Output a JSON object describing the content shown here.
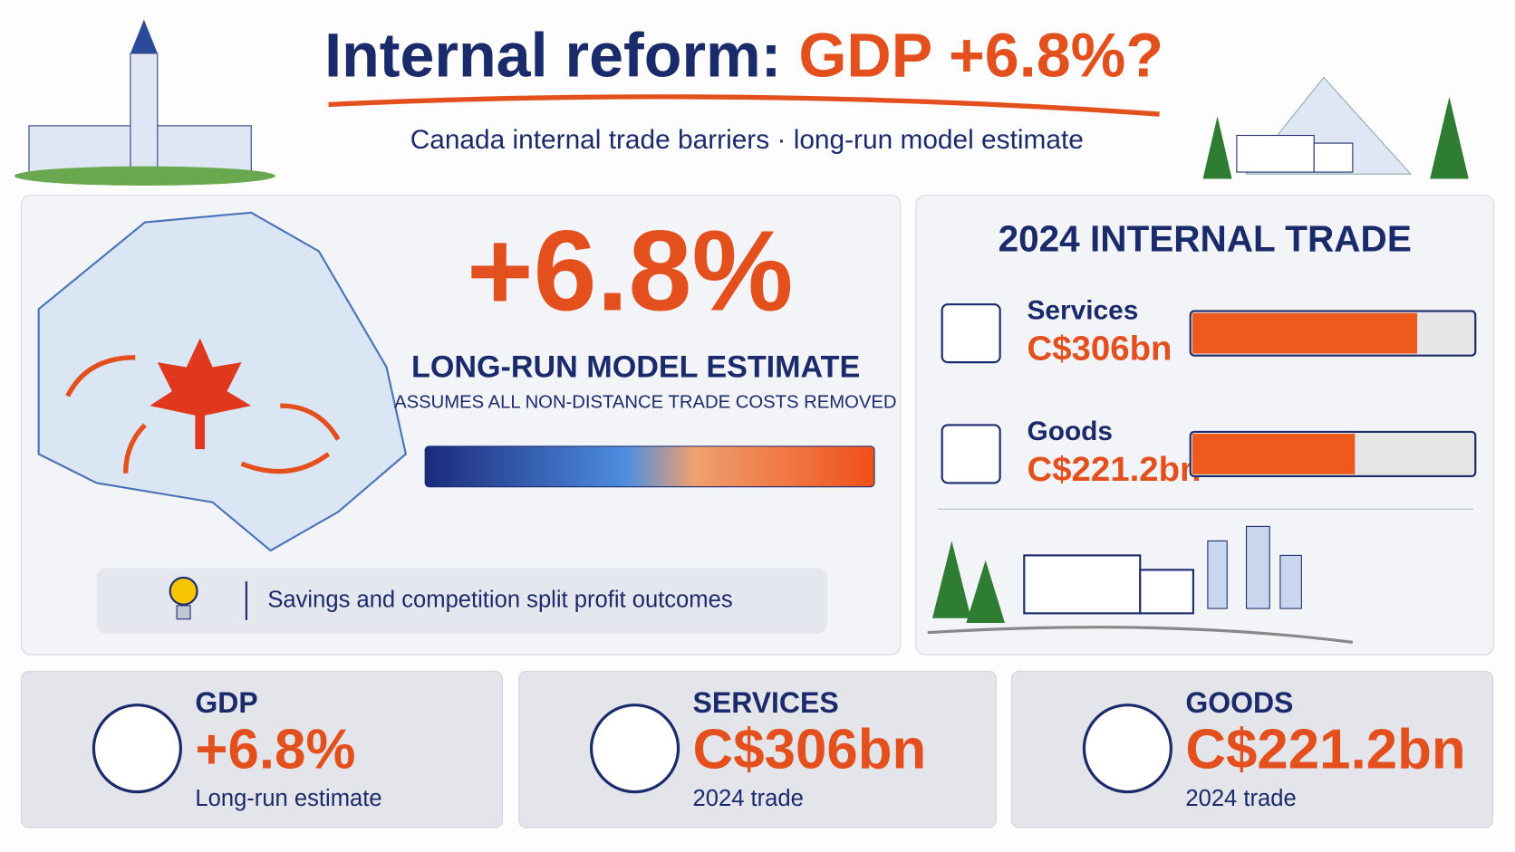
{
  "header": {
    "title_prefix": "Internal reform:",
    "title_highlight": "GDP +6.8%?",
    "subtitle": "Canada internal trade barriers · long-run model estimate"
  },
  "hero": {
    "value_label": "+6.8%",
    "heading": "LONG-RUN MODEL ESTIMATE",
    "note": "ASSUMES ALL NON-DISTANCE TRADE COSTS REMOVED",
    "insight": "Savings and competition split profit outcomes"
  },
  "trade": {
    "title": "2024 INTERNAL TRADE",
    "items": [
      {
        "name": "Services",
        "value": 306,
        "value_label": "C$306bn"
      },
      {
        "name": "Goods",
        "value": 221.2,
        "value_label": "C$221.2bn"
      }
    ]
  },
  "cards": [
    {
      "label": "GDP",
      "value": "+6.8%",
      "note": "Long-run estimate"
    },
    {
      "label": "SERVICES",
      "value": "C$306bn",
      "note": "2024 trade"
    },
    {
      "label": "GOODS",
      "value": "C$221.2bn",
      "note": "2024 trade"
    }
  ]
}
